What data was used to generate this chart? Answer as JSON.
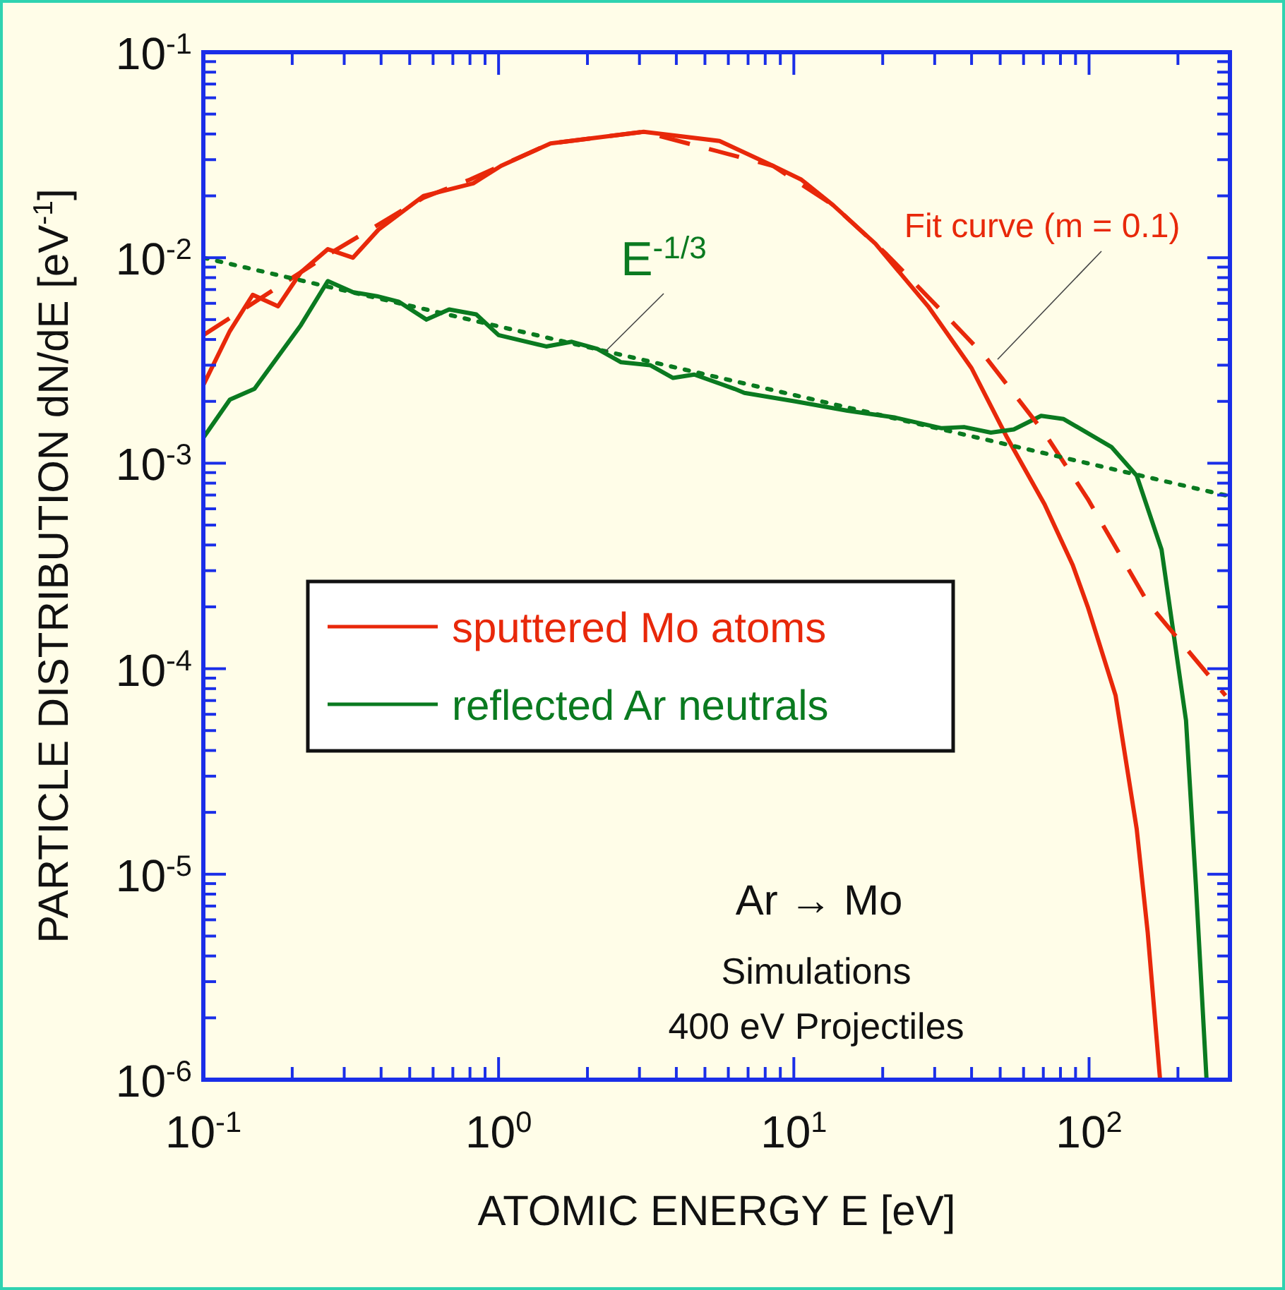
{
  "chart_data": {
    "type": "line",
    "xlabel": "ATOMIC ENERGY  E [eV]",
    "ylabel": "PARTICLE DISTRIBUTION  dN/dE [eV$^{-1}$]",
    "log": "xy",
    "grid": false,
    "legend": "left",
    "xlim": [
      0.1,
      300
    ],
    "ylim": [
      1e-06,
      0.1
    ],
    "xticks": [
      {
        "value": 0.1,
        "label": "10$^{-1}$"
      },
      {
        "value": 0.2,
        "label": null
      },
      {
        "value": 0.3,
        "label": null
      },
      {
        "value": 0.4,
        "label": null
      },
      {
        "value": 0.5,
        "label": null
      },
      {
        "value": 0.6,
        "label": null
      },
      {
        "value": 0.7,
        "label": null
      },
      {
        "value": 0.8,
        "label": null
      },
      {
        "value": 0.9,
        "label": null
      },
      {
        "value": 1,
        "label": "10$^{0}$"
      },
      {
        "value": 2,
        "label": null
      },
      {
        "value": 3,
        "label": null
      },
      {
        "value": 4,
        "label": null
      },
      {
        "value": 5,
        "label": null
      },
      {
        "value": 6,
        "label": null
      },
      {
        "value": 7,
        "label": null
      },
      {
        "value": 8,
        "label": null
      },
      {
        "value": 9,
        "label": null
      },
      {
        "value": 10,
        "label": "10$^{1}$"
      },
      {
        "value": 20,
        "label": null
      },
      {
        "value": 30,
        "label": null
      },
      {
        "value": 40,
        "label": null
      },
      {
        "value": 50,
        "label": null
      },
      {
        "value": 60,
        "label": null
      },
      {
        "value": 70,
        "label": null
      },
      {
        "value": 80,
        "label": null
      },
      {
        "value": 90,
        "label": null
      },
      {
        "value": 100,
        "label": "10$^{2}$"
      },
      {
        "value": 200,
        "label": null
      }
    ],
    "yticks": [
      {
        "value": 1e-06,
        "label": "10$^{-6}$"
      },
      {
        "value": 2e-06,
        "label": null
      },
      {
        "value": 3e-06,
        "label": null
      },
      {
        "value": 4e-06,
        "label": null
      },
      {
        "value": 5e-06,
        "label": null
      },
      {
        "value": 6e-06,
        "label": null
      },
      {
        "value": 7e-06,
        "label": null
      },
      {
        "value": 8e-06,
        "label": null
      },
      {
        "value": 9e-06,
        "label": null
      },
      {
        "value": 1e-05,
        "label": "10$^{-5}$"
      },
      {
        "value": 2e-05,
        "label": null
      },
      {
        "value": 3e-05,
        "label": null
      },
      {
        "value": 4e-05,
        "label": null
      },
      {
        "value": 5e-05,
        "label": null
      },
      {
        "value": 6e-05,
        "label": null
      },
      {
        "value": 7e-05,
        "label": null
      },
      {
        "value": 8e-05,
        "label": null
      },
      {
        "value": 9e-05,
        "label": null
      },
      {
        "value": 0.0001,
        "label": "10$^{-4}$"
      },
      {
        "value": 0.0002,
        "label": null
      },
      {
        "value": 0.0003,
        "label": null
      },
      {
        "value": 0.0004,
        "label": null
      },
      {
        "value": 0.0005,
        "label": null
      },
      {
        "value": 0.0006,
        "label": null
      },
      {
        "value": 0.0007,
        "label": null
      },
      {
        "value": 0.0008,
        "label": null
      },
      {
        "value": 0.0009,
        "label": null
      },
      {
        "value": 0.001,
        "label": "10$^{-3}$"
      },
      {
        "value": 0.002,
        "label": null
      },
      {
        "value": 0.003,
        "label": null
      },
      {
        "value": 0.004,
        "label": null
      },
      {
        "value": 0.005,
        "label": null
      },
      {
        "value": 0.006,
        "label": null
      },
      {
        "value": 0.007,
        "label": null
      },
      {
        "value": 0.008,
        "label": null
      },
      {
        "value": 0.009,
        "label": null
      },
      {
        "value": 0.01,
        "label": "10$^{-2}$"
      },
      {
        "value": 0.02,
        "label": null
      },
      {
        "value": 0.03,
        "label": null
      },
      {
        "value": 0.04,
        "label": null
      },
      {
        "value": 0.05,
        "label": null
      },
      {
        "value": 0.06,
        "label": null
      },
      {
        "value": 0.07,
        "label": null
      },
      {
        "value": 0.08,
        "label": null
      },
      {
        "value": 0.09,
        "label": null
      },
      {
        "value": 0.1,
        "label": "10$^{-1}$"
      }
    ],
    "series": [
      {
        "name": "sputtered Mo atoms",
        "color": "#e8280a",
        "line_style": "solid",
        "x": [
          0.1,
          0.123,
          0.147,
          0.179,
          0.214,
          0.264,
          0.321,
          0.392,
          0.557,
          0.82,
          1.02,
          1.5,
          3.1,
          5.6,
          8.5,
          10.6,
          13.6,
          18.9,
          28.5,
          40,
          52.8,
          70.7,
          88,
          99,
          123,
          145,
          158,
          174
        ],
        "values": [
          0.0024,
          0.0044,
          0.0066,
          0.0058,
          0.0085,
          0.011,
          0.01,
          0.0137,
          0.02,
          0.023,
          0.028,
          0.036,
          0.041,
          0.037,
          0.028,
          0.024,
          0.018,
          0.0117,
          0.0058,
          0.0029,
          0.00133,
          0.00063,
          0.00032,
          0.0002,
          7.4e-05,
          1.66e-05,
          5.2e-06,
          1e-06
        ]
      },
      {
        "name": "reflected Ar neutrals",
        "color": "#0a7a20",
        "line_style": "solid",
        "x": [
          0.1,
          0.123,
          0.149,
          0.214,
          0.264,
          0.321,
          0.387,
          0.46,
          0.57,
          0.68,
          0.84,
          1.0,
          1.45,
          1.77,
          2.16,
          2.6,
          3.26,
          3.9,
          4.6,
          6.3,
          6.8,
          10.1,
          15.2,
          21.9,
          31.7,
          37.7,
          46.5,
          55.6,
          68.8,
          82,
          119,
          145,
          176,
          213,
          230,
          250
        ],
        "values": [
          0.00133,
          0.00204,
          0.0023,
          0.0047,
          0.0077,
          0.0068,
          0.0065,
          0.0061,
          0.005,
          0.0056,
          0.0053,
          0.0042,
          0.0037,
          0.0039,
          0.0036,
          0.0031,
          0.003,
          0.0026,
          0.0027,
          0.0023,
          0.0022,
          0.002,
          0.0018,
          0.00167,
          0.00148,
          0.0015,
          0.00141,
          0.00146,
          0.0017,
          0.00164,
          0.0012,
          0.00087,
          0.00038,
          5.6e-05,
          8.9e-06,
          1e-06
        ]
      },
      {
        "color": "#e8280a",
        "line_style": "dashed",
        "x": [
          0.1,
          0.179,
          0.266,
          0.557,
          0.8,
          1.5,
          3.1,
          8.5,
          13.6,
          20.6,
          31.7,
          44.5,
          70.7,
          99,
          158,
          290
        ],
        "values": [
          0.0042,
          0.0072,
          0.0104,
          0.0196,
          0.024,
          0.036,
          0.041,
          0.028,
          0.018,
          0.0104,
          0.0055,
          0.0033,
          0.0014,
          0.00067,
          0.00021,
          7.4e-05
        ]
      },
      {
        "color": "#0a7a20",
        "line_style": "dotted",
        "x": [
          0.1,
          300
        ],
        "values": [
          0.01,
          0.00069
        ]
      }
    ],
    "annotations": [
      {
        "text": "E$^{-1/3}$",
        "x": 2.3,
        "y": 0.0035
      },
      {
        "text": "Fit curve (m = 0.1)",
        "x": 49,
        "y": 0.0032
      },
      "Ar → Mo",
      "Simulations",
      "400 eV Projectiles"
    ]
  }
}
